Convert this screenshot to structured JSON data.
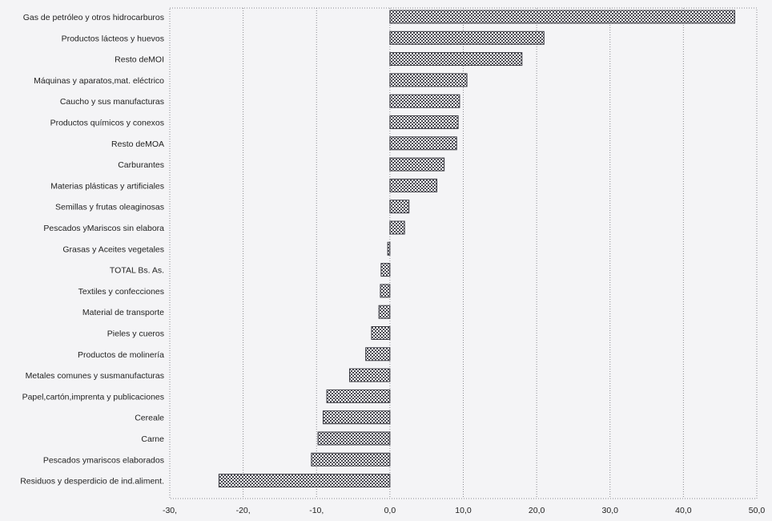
{
  "chart_data": {
    "type": "bar",
    "orientation": "horizontal",
    "title": "",
    "xlabel": "",
    "ylabel": "",
    "xlim": [
      -30,
      50
    ],
    "grid": true,
    "legend": "none",
    "bar_color": "#a0a0a8",
    "bar_pattern": "crosshatch",
    "x_ticks": [
      {
        "value": -30,
        "label": "-30,"
      },
      {
        "value": -20,
        "label": "-20,"
      },
      {
        "value": -10,
        "label": "-10,"
      },
      {
        "value": 0,
        "label": "0,0"
      },
      {
        "value": 10,
        "label": "10,0"
      },
      {
        "value": 20,
        "label": "20,0"
      },
      {
        "value": 30,
        "label": "30,0"
      },
      {
        "value": 40,
        "label": "40,0"
      },
      {
        "value": 50,
        "label": "50,0"
      }
    ],
    "categories": [
      "Gas de petróleo y otros hidrocarburos",
      "Productos lácteos y huevos",
      "Resto deMOI",
      "Máquinas y aparatos,mat. eléctrico",
      "Caucho y sus manufacturas",
      "Productos químicos y conexos",
      "Resto deMOA",
      "Carburantes",
      "Materias plásticas y artificiales",
      "Semillas y frutas oleaginosas",
      "Pescados yMariscos sin elabora",
      "Grasas y Aceites vegetales",
      "TOTAL Bs. As.",
      "Textiles y confecciones",
      "Material de transporte",
      "Pieles y cueros",
      "Productos de molinería",
      "Metales comunes y susmanufacturas",
      "Papel,cartón,imprenta y publicaciones",
      "Cereale",
      "Carne",
      "Pescados ymariscos elaborados",
      "Residuos y desperdicio de ind.aliment."
    ],
    "values": [
      47.0,
      21.0,
      18.0,
      10.5,
      9.5,
      9.3,
      9.1,
      7.4,
      6.4,
      2.6,
      2.0,
      -0.3,
      -1.2,
      -1.3,
      -1.5,
      -2.5,
      -3.3,
      -5.5,
      -8.6,
      -9.1,
      -9.8,
      -10.7,
      -23.3
    ]
  }
}
